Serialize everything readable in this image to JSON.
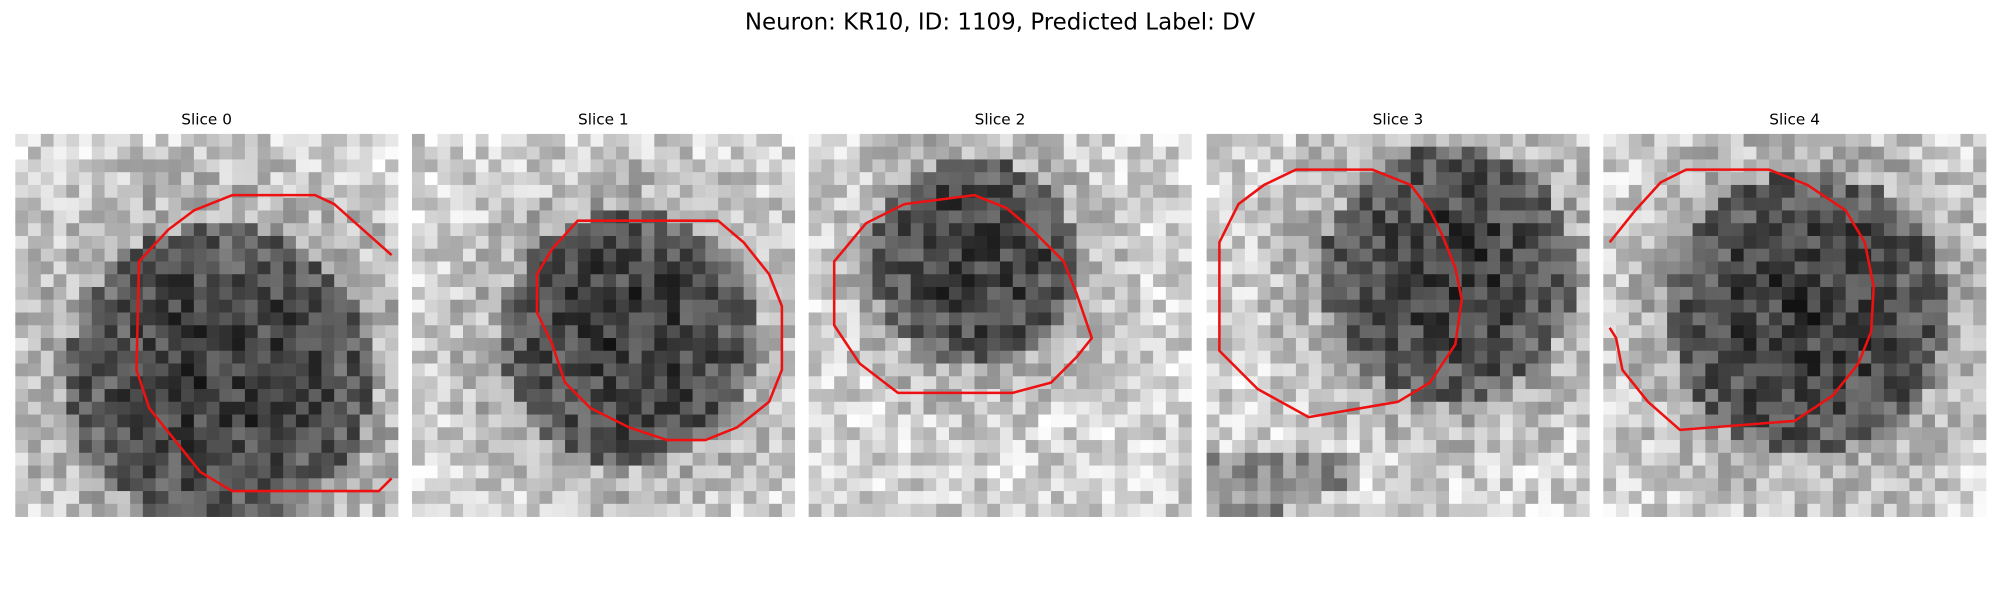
{
  "title": "Neuron: KR10, ID: 1109, Predicted Label: DV",
  "panels": [
    {
      "title": "Slice 0"
    },
    {
      "title": "Slice 1"
    },
    {
      "title": "Slice 2"
    },
    {
      "title": "Slice 3"
    },
    {
      "title": "Slice 4"
    }
  ]
}
